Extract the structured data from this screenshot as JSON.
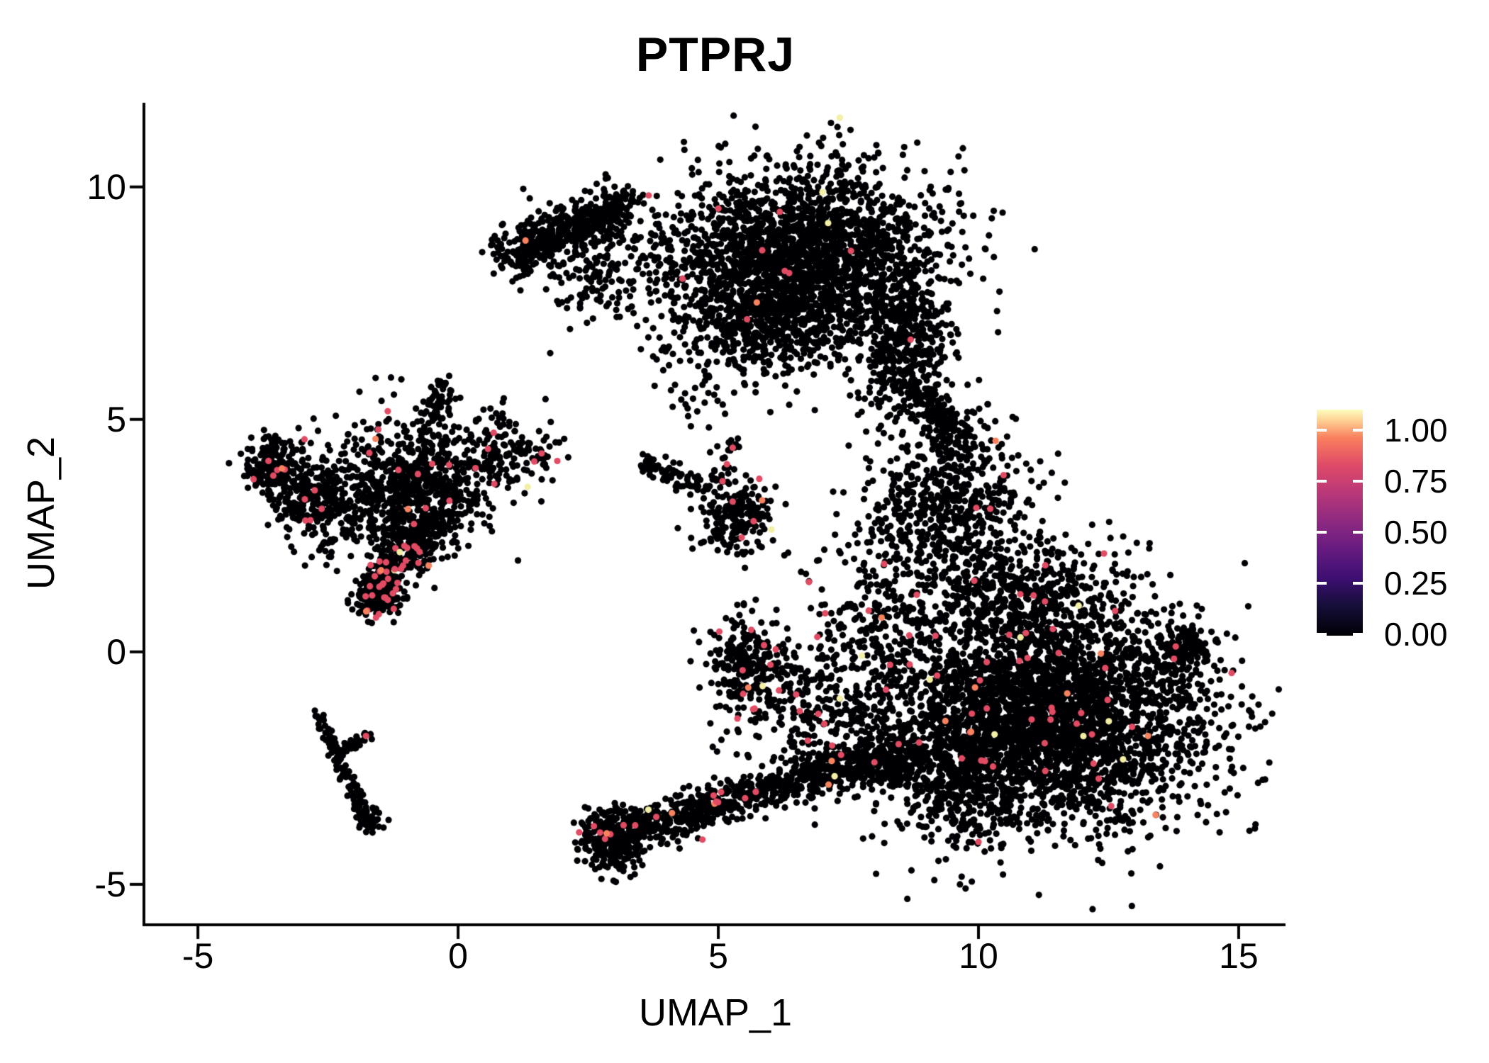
{
  "chart_data": {
    "type": "scatter",
    "title": "PTPRJ",
    "xlabel": "UMAP_1",
    "ylabel": "UMAP_2",
    "xlim": [
      -6.01,
      15.9
    ],
    "ylim": [
      -5.84,
      11.81
    ],
    "xticks": [
      -5,
      0,
      5,
      10,
      15
    ],
    "yticks": [
      -5,
      0,
      5,
      10
    ],
    "grid": false,
    "point_radius_px": 4.6,
    "base_point_color": "#000004",
    "expressed_point_colors": [
      {
        "color": "#E14B63",
        "weight": 0.82
      },
      {
        "color": "#F8835E",
        "weight": 0.1
      },
      {
        "color": "#F3EFA4",
        "weight": 0.08
      }
    ],
    "colorbar": {
      "ticks": [
        0,
        0.25,
        0.5,
        0.75,
        1
      ],
      "labels": [
        "0.00",
        "0.25",
        "0.50",
        "0.75",
        "1.00"
      ],
      "gradient_stops": [
        {
          "v": 0.0,
          "color": "#000004"
        },
        {
          "v": 0.125,
          "color": "#140e36"
        },
        {
          "v": 0.25,
          "color": "#3b0f70"
        },
        {
          "v": 0.375,
          "color": "#641a80"
        },
        {
          "v": 0.5,
          "color": "#8c2981"
        },
        {
          "v": 0.625,
          "color": "#b73779"
        },
        {
          "v": 0.75,
          "color": "#de4968"
        },
        {
          "v": 0.875,
          "color": "#fa7f5e"
        },
        {
          "v": 0.95,
          "color": "#fece91"
        },
        {
          "v": 1.0,
          "color": "#fcfdbf"
        }
      ],
      "position": "right"
    },
    "clusters": [
      {
        "name": "top-wing-band",
        "kind": "band",
        "x1": 0.95,
        "y1": 8.55,
        "x2": 3.2,
        "y2": 9.6,
        "w": 0.5,
        "n": 480,
        "p": 0.002
      },
      {
        "name": "top-wing-fill",
        "kind": "blob",
        "cx": 3.2,
        "cy": 8.35,
        "sx": 1.05,
        "sy": 0.7,
        "n": 230,
        "p": 0.002
      },
      {
        "name": "top-main",
        "kind": "blob",
        "cx": 6.6,
        "cy": 8.45,
        "sx": 1.3,
        "sy": 1.0,
        "n": 2300,
        "p": 0.004
      },
      {
        "name": "top-lower",
        "kind": "blob",
        "cx": 5.9,
        "cy": 7.0,
        "sx": 0.85,
        "sy": 0.5,
        "n": 330,
        "p": 0.004
      },
      {
        "name": "top-right-lobe",
        "kind": "blob",
        "cx": 8.55,
        "cy": 6.5,
        "sx": 0.5,
        "sy": 0.85,
        "n": 400,
        "p": 0.006
      },
      {
        "name": "neck",
        "kind": "band",
        "x1": 9.0,
        "y1": 5.6,
        "x2": 9.55,
        "y2": 4.3,
        "w": 0.4,
        "n": 150,
        "p": 0.01
      },
      {
        "name": "isthmus",
        "kind": "blob",
        "cx": 9.6,
        "cy": 3.3,
        "sx": 0.7,
        "sy": 0.75,
        "n": 430,
        "p": 0.012
      },
      {
        "name": "isthmus-left",
        "kind": "blob",
        "cx": 8.4,
        "cy": 2.7,
        "sx": 0.55,
        "sy": 0.85,
        "n": 150,
        "p": 0.012
      },
      {
        "name": "right-main",
        "kind": "blob",
        "cx": 11.3,
        "cy": -1.35,
        "sx": 1.55,
        "sy": 1.2,
        "n": 3500,
        "p": 0.015
      },
      {
        "name": "right-tip",
        "kind": "band",
        "x1": 13.55,
        "y1": -0.3,
        "x2": 14.3,
        "y2": 0.3,
        "w": 0.45,
        "n": 130,
        "p": 0.01
      },
      {
        "name": "right-top-edge",
        "kind": "blob",
        "cx": 10.6,
        "cy": 1.35,
        "sx": 1.05,
        "sy": 0.55,
        "n": 460,
        "p": 0.012
      },
      {
        "name": "right-bottom-lobe",
        "kind": "blob",
        "cx": 9.65,
        "cy": -2.65,
        "sx": 0.65,
        "sy": 0.75,
        "n": 380,
        "p": 0.012
      },
      {
        "name": "right-left-fringe",
        "kind": "blob",
        "cx": 8.0,
        "cy": -0.1,
        "sx": 0.65,
        "sy": 1.1,
        "n": 230,
        "p": 0.02
      },
      {
        "name": "mid-blob",
        "kind": "blob",
        "cx": 5.55,
        "cy": -0.3,
        "sx": 0.36,
        "sy": 0.48,
        "n": 220,
        "p": 0.035
      },
      {
        "name": "mid-bridge",
        "kind": "blob",
        "cx": 6.8,
        "cy": -1.25,
        "sx": 0.85,
        "sy": 0.85,
        "n": 260,
        "p": 0.03
      },
      {
        "name": "bottom-blob",
        "kind": "blob",
        "cx": 2.95,
        "cy": -4.0,
        "sx": 0.3,
        "sy": 0.35,
        "n": 290,
        "p": 0.012
      },
      {
        "name": "bottom-arm",
        "kind": "band",
        "x1": 3.3,
        "y1": -3.85,
        "x2": 7.2,
        "y2": -2.5,
        "w": 0.46,
        "n": 620,
        "p": 0.028
      },
      {
        "name": "arm-to-right",
        "kind": "band",
        "x1": 7.2,
        "y1": -2.5,
        "x2": 8.8,
        "y2": -2.3,
        "w": 0.5,
        "n": 300,
        "p": 0.02
      },
      {
        "name": "left-blob-a",
        "kind": "blob",
        "cx": -3.62,
        "cy": 4.05,
        "sx": 0.28,
        "sy": 0.33,
        "n": 170,
        "p": 0.03
      },
      {
        "name": "left-blob-b",
        "kind": "blob",
        "cx": -2.75,
        "cy": 3.3,
        "sx": 0.38,
        "sy": 0.48,
        "n": 290,
        "p": 0.015
      },
      {
        "name": "left-main",
        "kind": "blob",
        "cx": -0.95,
        "cy": 3.5,
        "sx": 0.72,
        "sy": 0.78,
        "n": 800,
        "p": 0.02
      },
      {
        "name": "left-top-spike",
        "kind": "band",
        "x1": -0.6,
        "y1": 4.9,
        "x2": -0.25,
        "y2": 5.8,
        "w": 0.26,
        "n": 55,
        "p": 0.01
      },
      {
        "name": "left-red-arc",
        "kind": "band",
        "x1": -1.8,
        "y1": 1.0,
        "x2": -0.4,
        "y2": 2.95,
        "w": 0.4,
        "n": 340,
        "p": 0.12
      },
      {
        "name": "left-arc-clump",
        "kind": "blob",
        "cx": -1.45,
        "cy": 1.15,
        "sx": 0.2,
        "sy": 0.17,
        "n": 100,
        "p": 0.1
      },
      {
        "name": "left-right-scatter",
        "kind": "blob",
        "cx": 0.9,
        "cy": 4.25,
        "sx": 0.5,
        "sy": 0.42,
        "n": 160,
        "p": 0.05
      },
      {
        "name": "center-main",
        "kind": "blob",
        "cx": 5.35,
        "cy": 2.9,
        "sx": 0.36,
        "sy": 0.4,
        "n": 200,
        "p": 0.02
      },
      {
        "name": "center-arm",
        "kind": "band",
        "x1": 3.5,
        "y1": 4.15,
        "x2": 4.7,
        "y2": 3.45,
        "w": 0.28,
        "n": 75,
        "p": 0.01
      },
      {
        "name": "center-up",
        "kind": "band",
        "x1": 5.0,
        "y1": 3.6,
        "x2": 5.35,
        "y2": 4.6,
        "w": 0.2,
        "n": 28,
        "p": 0.05
      },
      {
        "name": "streak",
        "kind": "band",
        "x1": -2.68,
        "y1": -1.35,
        "x2": -1.75,
        "y2": -3.6,
        "w": 0.14,
        "n": 120,
        "p": 0.008
      },
      {
        "name": "streak-end",
        "kind": "blob",
        "cx": -1.7,
        "cy": -3.62,
        "sx": 0.12,
        "sy": 0.11,
        "n": 40,
        "p": 0
      },
      {
        "name": "streak-branch",
        "kind": "band",
        "x1": -2.3,
        "y1": -2.2,
        "x2": -1.75,
        "y2": -1.8,
        "w": 0.12,
        "n": 38,
        "p": 0.03
      },
      {
        "name": "mid-sparse",
        "kind": "blob",
        "cx": 4.6,
        "cy": 5.6,
        "sx": 0.45,
        "sy": 0.38,
        "n": 30,
        "p": 0
      }
    ]
  }
}
